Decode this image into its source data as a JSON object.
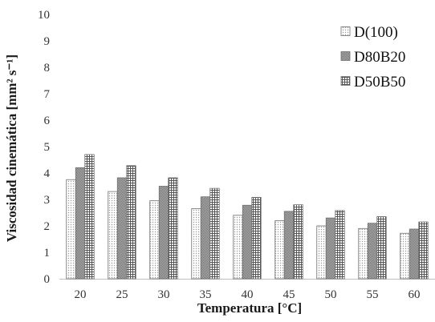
{
  "chart_data": {
    "type": "bar",
    "title": "",
    "xlabel": "Temperatura [°C]",
    "ylabel": "Viscosidad cinemática [mm² s⁻¹]",
    "categories": [
      "20",
      "25",
      "30",
      "35",
      "40",
      "45",
      "50",
      "55",
      "60"
    ],
    "ylim": [
      0,
      10
    ],
    "yticks": [
      "0",
      "1",
      "2",
      "3",
      "4",
      "5",
      "6",
      "7",
      "8",
      "9",
      "10"
    ],
    "grid": false,
    "legend_position": "top-right",
    "series": [
      {
        "name": "D(100)",
        "pattern": "dots",
        "values": [
          3.75,
          3.3,
          2.95,
          2.65,
          2.4,
          2.2,
          2.0,
          1.9,
          1.72
        ]
      },
      {
        "name": "D80B20",
        "pattern": "dense",
        "values": [
          4.2,
          3.82,
          3.5,
          3.1,
          2.78,
          2.55,
          2.3,
          2.1,
          1.88
        ]
      },
      {
        "name": "D50B50",
        "pattern": "grid",
        "values": [
          4.7,
          4.28,
          3.82,
          3.42,
          3.08,
          2.8,
          2.58,
          2.35,
          2.15
        ]
      }
    ]
  }
}
